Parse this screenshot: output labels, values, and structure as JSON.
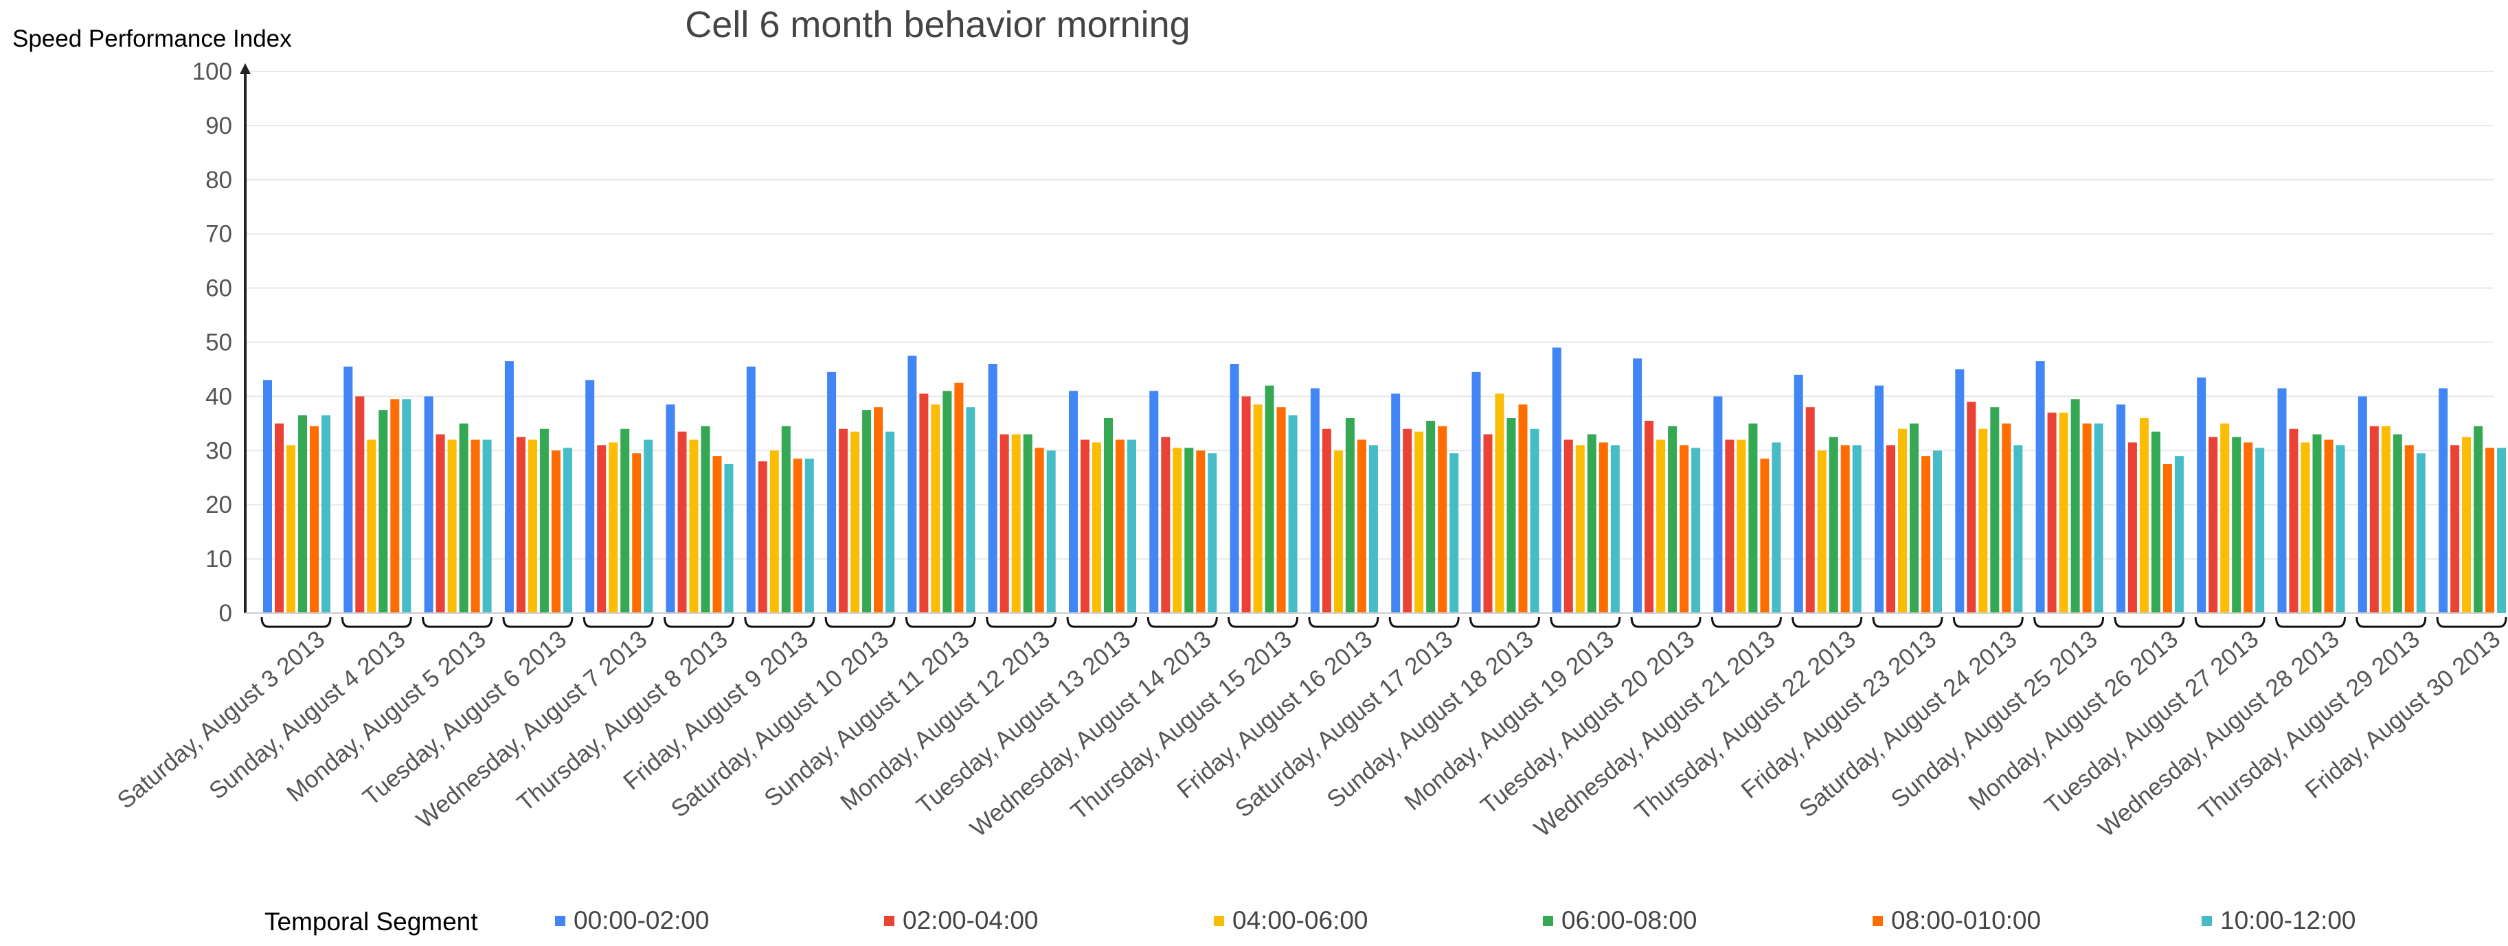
{
  "chart_data": {
    "type": "bar",
    "title": "Cell 6 month behavior morning",
    "ylabel": "Speed Performance Index",
    "xlabel": "",
    "ylim": [
      0,
      100
    ],
    "yticks": [
      0,
      10,
      20,
      30,
      40,
      50,
      60,
      70,
      80,
      90,
      100
    ],
    "grid": true,
    "legend_position": "bottom",
    "legend_title": "Temporal Segment",
    "categories": [
      "Saturday, August 3  2013",
      "Sunday, August 4  2013",
      "Monday, August 5  2013",
      "Tuesday, August 6  2013",
      "Wednesday, August 7  2013",
      "Thursday, August 8  2013",
      "Friday, August 9  2013",
      "Saturday, August 10  2013",
      "Sunday, August 11  2013",
      "Monday, August 12  2013",
      "Tuesday, August 13  2013",
      "Wednesday, August 14  2013",
      "Thursday, August 15  2013",
      "Friday, August 16  2013",
      "Saturday, August 17  2013",
      "Sunday, August 18  2013",
      "Monday, August 19  2013",
      "Tuesday, August 20  2013",
      "Wednesday, August 21  2013",
      "Thursday, August 22  2013",
      "Friday, August 23  2013",
      "Saturday, August 24  2013",
      "Sunday, August 25  2013",
      "Monday, August 26  2013",
      "Tuesday, August 27  2013",
      "Wednesday, August 28  2013",
      "Thursday, August 29  2013",
      "Friday, August 30  2013"
    ],
    "series": [
      {
        "name": "00:00-02:00",
        "color": "#4285f4",
        "values": [
          43,
          45.5,
          40,
          46.5,
          43,
          38.5,
          45.5,
          44.5,
          47.5,
          46,
          41,
          41,
          46,
          41.5,
          40.5,
          44.5,
          49,
          47,
          40,
          44,
          42,
          45,
          46.5,
          38.5,
          43.5,
          41.5,
          40,
          41.5
        ]
      },
      {
        "name": "02:00-04:00",
        "color": "#ea4335",
        "values": [
          35,
          40,
          33,
          32.5,
          31,
          33.5,
          28,
          34,
          40.5,
          33,
          32,
          32.5,
          40,
          34,
          34,
          33,
          32,
          35.5,
          32,
          38,
          31,
          39,
          37,
          31.5,
          32.5,
          34,
          34.5,
          31
        ]
      },
      {
        "name": "04:00-06:00",
        "color": "#fbbc04",
        "values": [
          31,
          32,
          32,
          32,
          31.5,
          32,
          30,
          33.5,
          38.5,
          33,
          31.5,
          30.5,
          38.5,
          30,
          33.5,
          40.5,
          31,
          32,
          32,
          30,
          34,
          34,
          37,
          36,
          35,
          31.5,
          34.5,
          32.5
        ]
      },
      {
        "name": "06:00-08:00",
        "color": "#34a853",
        "values": [
          36.5,
          37.5,
          35,
          34,
          34,
          34.5,
          34.5,
          37.5,
          41,
          33,
          36,
          30.5,
          42,
          36,
          35.5,
          36,
          33,
          34.5,
          35,
          32.5,
          35,
          38,
          39.5,
          33.5,
          32.5,
          33,
          33,
          34.5
        ]
      },
      {
        "name": "08:00-010:00",
        "color": "#ff6d01",
        "values": [
          34.5,
          39.5,
          32,
          30,
          29.5,
          29,
          28.5,
          38,
          42.5,
          30.5,
          32,
          30,
          38,
          32,
          34.5,
          38.5,
          31.5,
          31,
          28.5,
          31,
          29,
          35,
          35,
          27.5,
          31.5,
          32,
          31,
          30.5
        ]
      },
      {
        "name": "10:00-12:00",
        "color": "#46bdc6",
        "values": [
          36.5,
          39.5,
          32,
          30.5,
          32,
          27.5,
          28.5,
          33.5,
          38,
          30,
          32,
          29.5,
          36.5,
          31,
          29.5,
          34,
          31,
          30.5,
          31.5,
          31,
          30,
          31,
          35,
          29,
          30.5,
          31,
          29.5,
          30.5
        ]
      }
    ]
  }
}
